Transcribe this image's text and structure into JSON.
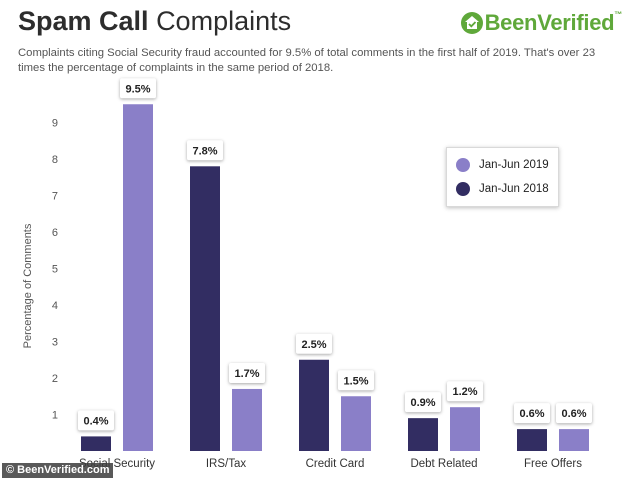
{
  "header": {
    "title_bold": "Spam Call",
    "title_light": "Complaints",
    "subtitle": "Complaints citing Social Security fraud accounted for 9.5% of total comments in the first half of 2019. That's over 23 times the percentage of complaints in the same period of 2018.",
    "brand": {
      "text_part1": "Been",
      "text_part2": "Verified",
      "tm": "™",
      "icon": "house-check-icon",
      "color": "#5fa83a"
    }
  },
  "credit": "© BeenVerified.com",
  "chart_data": {
    "type": "bar",
    "title": "",
    "xlabel": "",
    "ylabel": "Percentage of Comments",
    "ylim": [
      0,
      10
    ],
    "yticks": [
      1,
      2,
      3,
      4,
      5,
      6,
      7,
      8,
      9
    ],
    "grid": false,
    "legend_position": "top-right",
    "categories": [
      "Social Security",
      "IRS/Tax",
      "Credit Card",
      "Debt Related",
      "Free Offers"
    ],
    "series": [
      {
        "name": "Jan-Jun 2018",
        "color": "#322d62",
        "values": [
          0.4,
          7.8,
          2.5,
          0.9,
          0.6
        ],
        "labels": [
          "0.4%",
          "7.8%",
          "2.5%",
          "0.9%",
          "0.6%"
        ]
      },
      {
        "name": "Jan-Jun 2019",
        "color": "#8a7fc8",
        "values": [
          9.5,
          1.7,
          1.5,
          1.2,
          0.6
        ],
        "labels": [
          "9.5%",
          "1.7%",
          "1.5%",
          "1.2%",
          "0.6%"
        ]
      }
    ],
    "legend_order": [
      "Jan-Jun 2019",
      "Jan-Jun 2018"
    ]
  }
}
